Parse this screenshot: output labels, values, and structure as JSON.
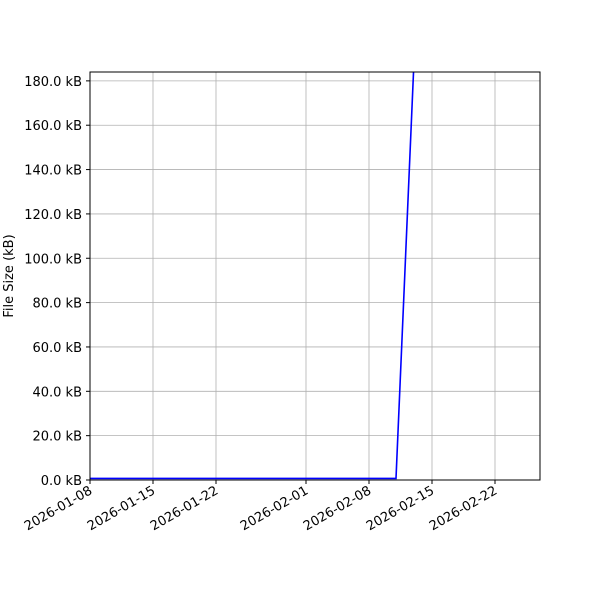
{
  "chart_data": {
    "type": "line",
    "title": "",
    "xlabel": "",
    "ylabel": "File Size (kB)",
    "x_type": "date",
    "xlim": [
      "2026-01-08",
      "2026-02-27"
    ],
    "ylim": [
      0,
      184
    ],
    "grid": true,
    "x_ticks": [
      "2026-01-08",
      "2026-01-15",
      "2026-01-22",
      "2026-02-01",
      "2026-02-08",
      "2026-02-15",
      "2026-02-22"
    ],
    "y_ticks": [
      0,
      20,
      40,
      60,
      80,
      100,
      120,
      140,
      160,
      180
    ],
    "y_tick_labels": [
      "0.0 kB",
      "20.0 kB",
      "40.0 kB",
      "60.0 kB",
      "80.0 kB",
      "100.0 kB",
      "120.0 kB",
      "140.0 kB",
      "160.0 kB",
      "180.0 kB"
    ],
    "series": [
      {
        "color": "#0000ff",
        "x": [
          "2026-01-08",
          "2026-02-11",
          "2026-02-13"
        ],
        "y": [
          0.7,
          0.7,
          189
        ]
      }
    ]
  }
}
